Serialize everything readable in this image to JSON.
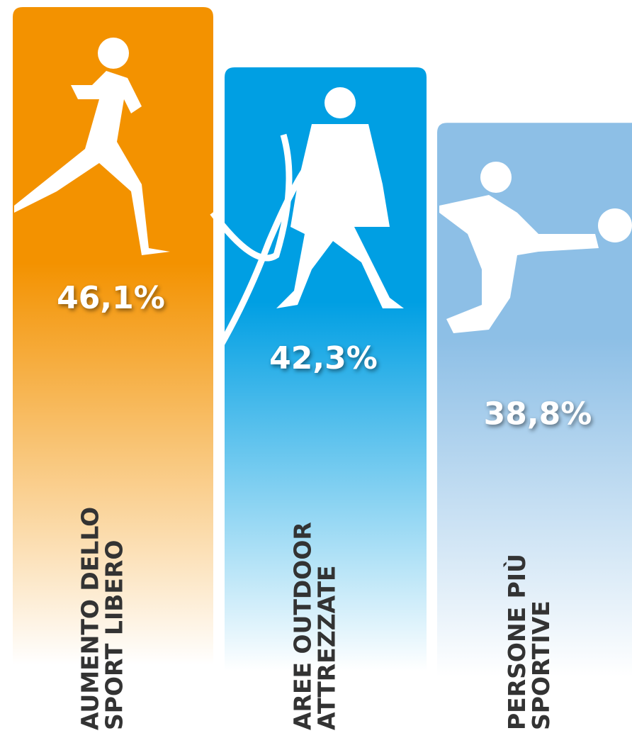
{
  "chart_data": {
    "type": "bar",
    "categories": [
      [
        "AUMENTO DELLO",
        "SPORT LIBERO"
      ],
      [
        "AREE OUTDOOR",
        "ATTREZZATE"
      ],
      [
        "PERSONE PIÙ",
        "SPORTIVE"
      ]
    ],
    "values": [
      46.1,
      42.3,
      38.8
    ],
    "value_labels": [
      "46,1%",
      "42,3%",
      "38,8%"
    ],
    "colors": [
      "#f39200",
      "#009fe3",
      "#8dbfe6"
    ]
  }
}
